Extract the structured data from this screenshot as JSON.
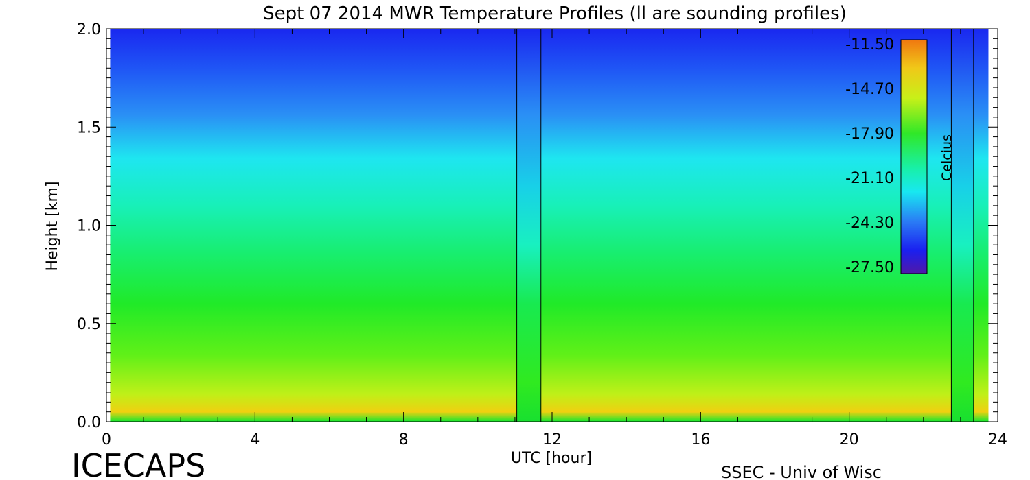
{
  "chart_data": {
    "type": "heatmap",
    "title": "Sept 07 2014 MWR Temperature Profiles (ll are sounding profiles)",
    "xlabel": "UTC [hour]",
    "ylabel": "Height [km]",
    "xlim": [
      0,
      24
    ],
    "ylim": [
      0,
      2.0
    ],
    "xticks": [
      "0",
      "4",
      "8",
      "12",
      "16",
      "20",
      "24"
    ],
    "yticks": [
      "0.0",
      "0.5",
      "1.0",
      "1.5",
      "2.0"
    ],
    "sounding_profiles_utc": [
      {
        "start": 11.05,
        "end": 11.7
      },
      {
        "start": 22.75,
        "end": 23.35
      }
    ],
    "data_end_utc": 23.75,
    "colorbar": {
      "label": "Celcius",
      "ticks": [
        "-11.50",
        "-14.70",
        "-17.90",
        "-21.10",
        "-24.30",
        "-27.50"
      ],
      "range": [
        -27.5,
        -11.5
      ]
    },
    "footer_left": "ICECAPS",
    "footer_right": "SSEC - Univ of Wisc"
  }
}
